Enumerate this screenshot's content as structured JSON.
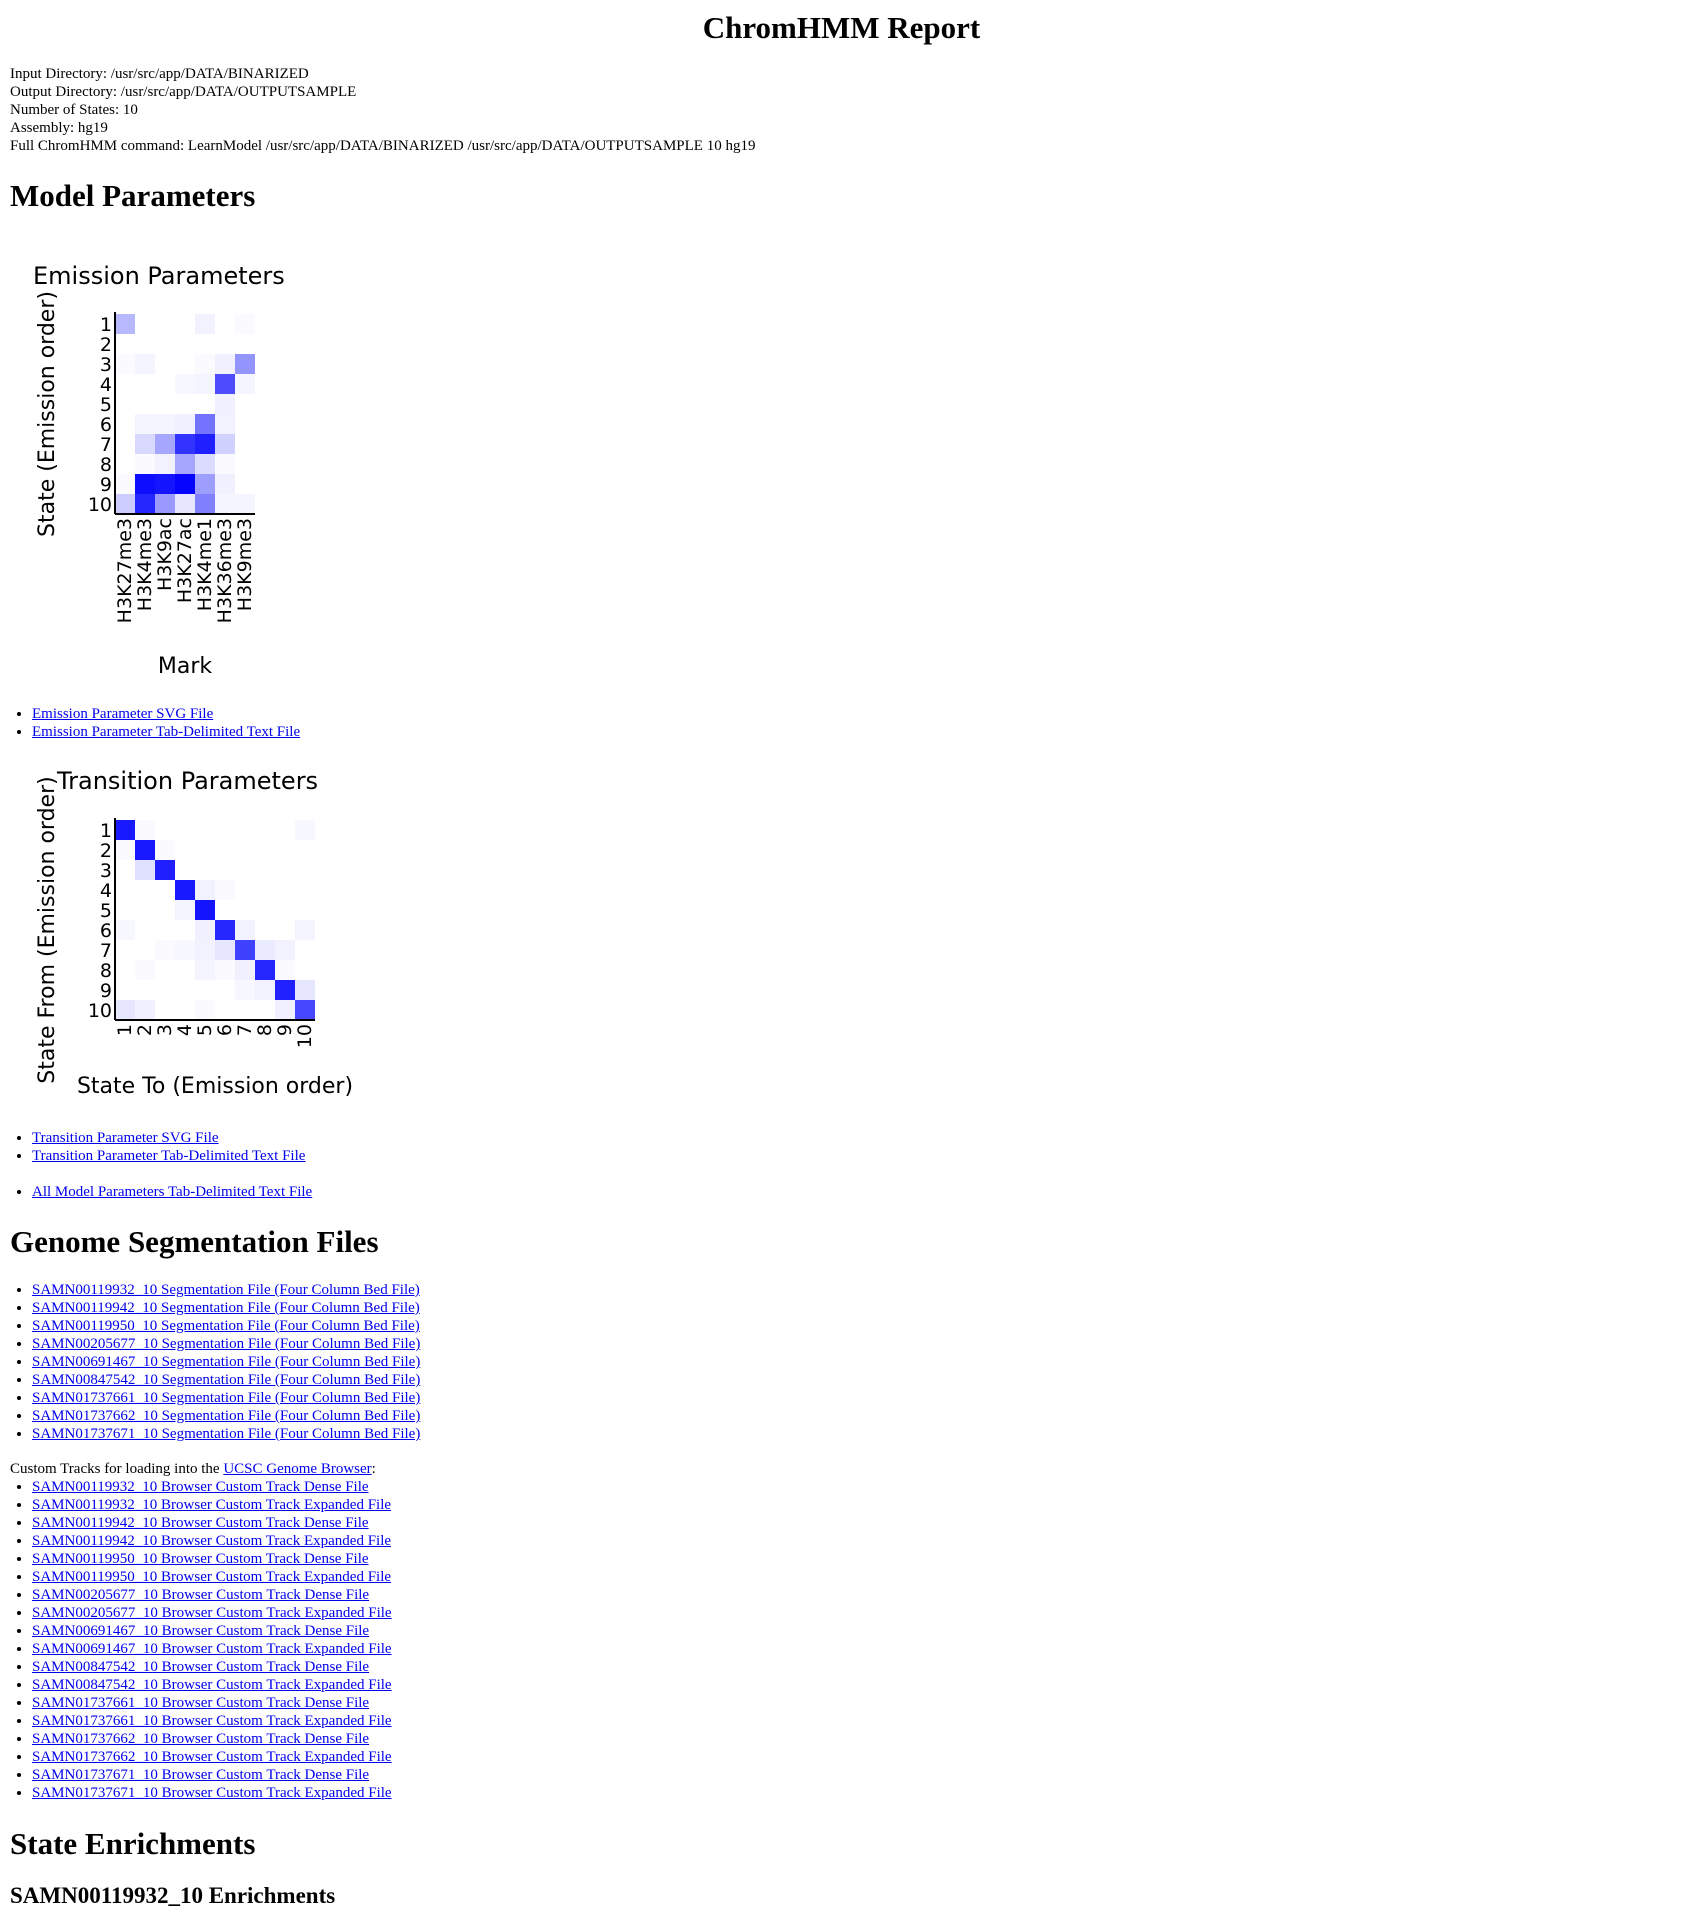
{
  "title": "ChromHMM Report",
  "meta": {
    "input_dir": "Input Directory: /usr/src/app/DATA/BINARIZED",
    "output_dir": "Output Directory: /usr/src/app/DATA/OUTPUTSAMPLE",
    "num_states": "Number of States: 10",
    "assembly": "Assembly: hg19",
    "command": "Full ChromHMM command: LearnModel /usr/src/app/DATA/BINARIZED /usr/src/app/DATA/OUTPUTSAMPLE 10 hg19"
  },
  "sections": {
    "model_parameters": "Model Parameters",
    "genome_segmentation": "Genome Segmentation Files",
    "state_enrichments": "State Enrichments",
    "enrichments_sub": "SAMN00119932_10 Enrichments"
  },
  "emission_links": [
    "Emission Parameter SVG File",
    "Emission Parameter Tab-Delimited Text File"
  ],
  "transition_links": [
    "Transition Parameter SVG File",
    "Transition Parameter Tab-Delimited Text File"
  ],
  "all_params_link": "All Model Parameters Tab-Delimited Text File",
  "segmentation_links": [
    "SAMN00119932_10 Segmentation File (Four Column Bed File)",
    "SAMN00119942_10 Segmentation File (Four Column Bed File)",
    "SAMN00119950_10 Segmentation File (Four Column Bed File)",
    "SAMN00205677_10 Segmentation File (Four Column Bed File)",
    "SAMN00691467_10 Segmentation File (Four Column Bed File)",
    "SAMN00847542_10 Segmentation File (Four Column Bed File)",
    "SAMN01737661_10 Segmentation File (Four Column Bed File)",
    "SAMN01737662_10 Segmentation File (Four Column Bed File)",
    "SAMN01737671_10 Segmentation File (Four Column Bed File)"
  ],
  "custom_tracks": {
    "intro": "Custom Tracks for loading into the ",
    "browser_link": "UCSC Genome Browser",
    "suffix": ":",
    "links": [
      "SAMN00119932_10 Browser Custom Track Dense File",
      "SAMN00119932_10 Browser Custom Track Expanded File",
      "SAMN00119942_10 Browser Custom Track Dense File",
      "SAMN00119942_10 Browser Custom Track Expanded File",
      "SAMN00119950_10 Browser Custom Track Dense File",
      "SAMN00119950_10 Browser Custom Track Expanded File",
      "SAMN00205677_10 Browser Custom Track Dense File",
      "SAMN00205677_10 Browser Custom Track Expanded File",
      "SAMN00691467_10 Browser Custom Track Dense File",
      "SAMN00691467_10 Browser Custom Track Expanded File",
      "SAMN00847542_10 Browser Custom Track Dense File",
      "SAMN00847542_10 Browser Custom Track Expanded File",
      "SAMN01737661_10 Browser Custom Track Dense File",
      "SAMN01737661_10 Browser Custom Track Expanded File",
      "SAMN01737662_10 Browser Custom Track Dense File",
      "SAMN01737662_10 Browser Custom Track Expanded File",
      "SAMN01737671_10 Browser Custom Track Dense File",
      "SAMN01737671_10 Browser Custom Track Expanded File"
    ]
  },
  "chart_data": [
    {
      "type": "heatmap",
      "title": "Emission Parameters",
      "xlabel": "Mark",
      "ylabel": "State (Emission order)",
      "x": [
        "H3K27me3",
        "H3K4me3",
        "H3K9ac",
        "H3K27ac",
        "H3K4me1",
        "H3K36me3",
        "H3K9me3"
      ],
      "y": [
        "1",
        "2",
        "3",
        "4",
        "5",
        "6",
        "7",
        "8",
        "9",
        "10"
      ],
      "color": "#0000ff",
      "values": [
        [
          0.28,
          0.0,
          0.0,
          0.0,
          0.05,
          0.0,
          0.02
        ],
        [
          0.0,
          0.0,
          0.0,
          0.0,
          0.0,
          0.0,
          0.0
        ],
        [
          0.02,
          0.04,
          0.0,
          0.0,
          0.02,
          0.06,
          0.42
        ],
        [
          0.0,
          0.0,
          0.0,
          0.03,
          0.04,
          0.7,
          0.04
        ],
        [
          0.0,
          0.0,
          0.0,
          0.0,
          0.0,
          0.06,
          0.0
        ],
        [
          0.0,
          0.04,
          0.04,
          0.06,
          0.55,
          0.05,
          0.0
        ],
        [
          0.0,
          0.15,
          0.35,
          0.8,
          0.88,
          0.18,
          0.0
        ],
        [
          0.0,
          0.02,
          0.05,
          0.35,
          0.14,
          0.02,
          0.0
        ],
        [
          0.02,
          0.95,
          0.92,
          0.98,
          0.38,
          0.06,
          0.0
        ],
        [
          0.2,
          0.85,
          0.4,
          0.1,
          0.5,
          0.04,
          0.04
        ]
      ]
    },
    {
      "type": "heatmap",
      "title": "Transition Parameters",
      "xlabel": "State To (Emission order)",
      "ylabel": "State From (Emission order)",
      "x": [
        "1",
        "2",
        "3",
        "4",
        "5",
        "6",
        "7",
        "8",
        "9",
        "10"
      ],
      "y": [
        "1",
        "2",
        "3",
        "4",
        "5",
        "6",
        "7",
        "8",
        "9",
        "10"
      ],
      "color": "#0000ff",
      "values": [
        [
          0.9,
          0.02,
          0.0,
          0.0,
          0.0,
          0.0,
          0.0,
          0.0,
          0.0,
          0.03
        ],
        [
          0.02,
          0.9,
          0.02,
          0.0,
          0.0,
          0.0,
          0.0,
          0.0,
          0.0,
          0.0
        ],
        [
          0.0,
          0.12,
          0.88,
          0.0,
          0.0,
          0.0,
          0.0,
          0.0,
          0.0,
          0.0
        ],
        [
          0.0,
          0.0,
          0.0,
          0.9,
          0.05,
          0.02,
          0.0,
          0.0,
          0.0,
          0.0
        ],
        [
          0.0,
          0.0,
          0.0,
          0.04,
          0.92,
          0.0,
          0.0,
          0.0,
          0.0,
          0.0
        ],
        [
          0.03,
          0.0,
          0.0,
          0.0,
          0.06,
          0.85,
          0.05,
          0.0,
          0.0,
          0.04
        ],
        [
          0.0,
          0.0,
          0.02,
          0.03,
          0.05,
          0.1,
          0.75,
          0.08,
          0.05,
          0.0
        ],
        [
          0.0,
          0.02,
          0.0,
          0.0,
          0.04,
          0.02,
          0.06,
          0.85,
          0.02,
          0.0
        ],
        [
          0.0,
          0.0,
          0.0,
          0.0,
          0.0,
          0.0,
          0.03,
          0.05,
          0.87,
          0.1
        ],
        [
          0.1,
          0.06,
          0.0,
          0.0,
          0.02,
          0.0,
          0.0,
          0.0,
          0.06,
          0.72
        ]
      ]
    }
  ]
}
